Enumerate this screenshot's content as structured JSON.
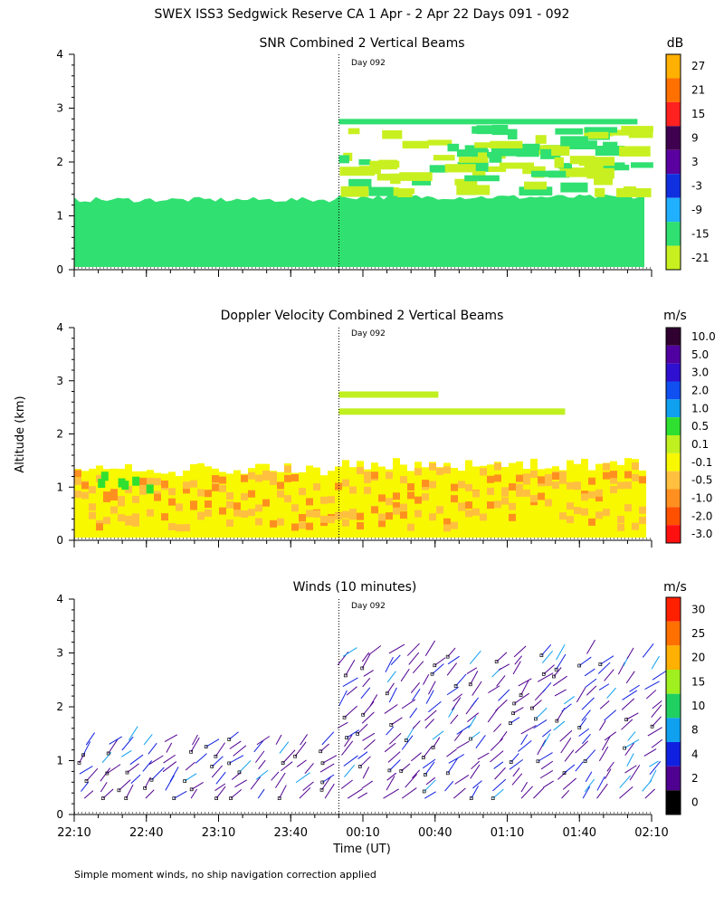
{
  "title": "SWEX ISS3 Sedgwick Reserve CA    1 Apr -  2 Apr 22 Days 091 - 092",
  "ylabel": "Altitude (km)",
  "xlabel": "Time (UT)",
  "day_marker": "Day 092",
  "footnote": "Simple moment winds, no ship navigation correction applied",
  "x_ticks": [
    "22:10",
    "22:40",
    "23:10",
    "23:40",
    "00:10",
    "00:40",
    "01:10",
    "01:40",
    "02:10"
  ],
  "y_ticks": [
    "0",
    "1",
    "2",
    "3",
    "4"
  ],
  "chart_data": [
    {
      "type": "heatmap",
      "title": "SNR Combined 2 Vertical Beams",
      "xlim": [
        "22:10",
        "02:10"
      ],
      "ylim": [
        0,
        4
      ],
      "colorbar_unit": "dB",
      "colorbar_labels": [
        "27",
        "21",
        "15",
        "9",
        "3",
        "-3",
        "-9",
        "-15",
        "-21"
      ],
      "colorbar_colors": [
        "#ffb000",
        "#ff7000",
        "#ff2020",
        "#400050",
        "#5a00a0",
        "#1030e0",
        "#20b0ff",
        "#30e070",
        "#c8f020"
      ],
      "day_boundary": "00:00"
    },
    {
      "type": "heatmap",
      "title": "Doppler Velocity Combined 2 Vertical Beams",
      "xlim": [
        "22:10",
        "02:10"
      ],
      "ylim": [
        0,
        4
      ],
      "colorbar_unit": "m/s",
      "colorbar_labels": [
        "10.0",
        "5.0",
        "3.0",
        "2.0",
        "1.0",
        "0.5",
        "0.1",
        "-0.1",
        "-0.5",
        "-1.0",
        "-2.0",
        "-3.0"
      ],
      "colorbar_colors": [
        "#300030",
        "#5000a0",
        "#3010d0",
        "#1050f0",
        "#10a0f0",
        "#30e030",
        "#c0f020",
        "#f8f800",
        "#ffc040",
        "#ff9020",
        "#ff5000",
        "#ff1010"
      ],
      "day_boundary": "00:00"
    },
    {
      "type": "scatter",
      "title": "Winds (10 minutes)",
      "xlim": [
        "22:10",
        "02:10"
      ],
      "ylim": [
        0,
        4
      ],
      "colorbar_unit": "m/s",
      "colorbar_labels": [
        "30",
        "25",
        "20",
        "15",
        "10",
        "8",
        "4",
        "2",
        "0"
      ],
      "colorbar_colors": [
        "#ff2000",
        "#ff7000",
        "#ffb000",
        "#a0f020",
        "#20d060",
        "#10a0f0",
        "#1020e0",
        "#500090",
        "#000000"
      ],
      "day_boundary": "00:00"
    }
  ]
}
